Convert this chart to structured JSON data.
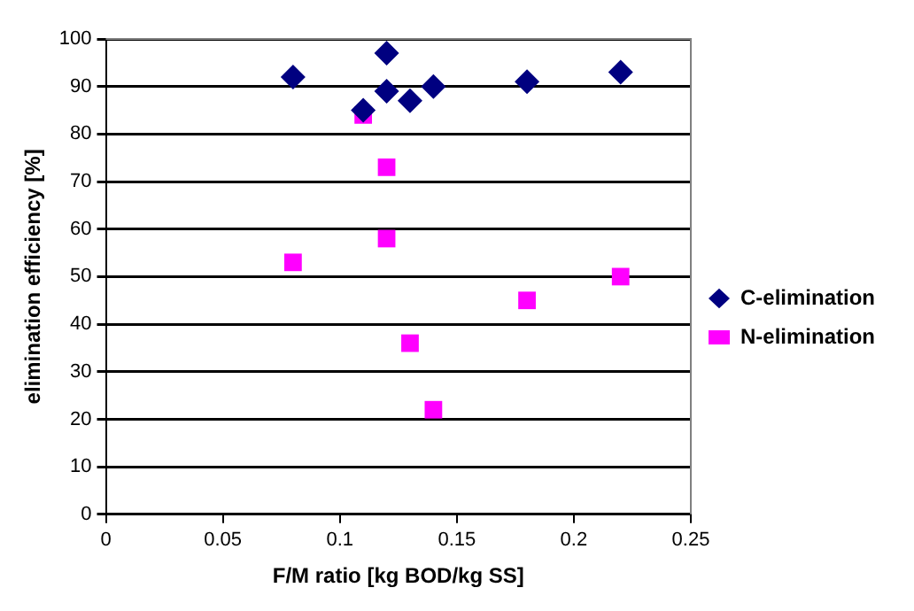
{
  "chart_data": {
    "type": "scatter",
    "xlabel": "F/M ratio [kg BOD/kg SS]",
    "ylabel": "elimination efficiency [%]",
    "xlim": [
      0,
      0.25
    ],
    "xticks": [
      0,
      0.05,
      0.1,
      0.15,
      0.2,
      0.25
    ],
    "ylim": [
      0,
      100
    ],
    "yticks": [
      0,
      10,
      20,
      30,
      40,
      50,
      60,
      70,
      80,
      90,
      100
    ],
    "grid": "y",
    "legend": "right",
    "series": [
      {
        "name": "N-elimination",
        "color": "#ff00ff",
        "marker": "square",
        "x": [
          0.08,
          0.11,
          0.12,
          0.12,
          0.13,
          0.14,
          0.18,
          0.22
        ],
        "values": [
          53,
          84,
          73,
          58,
          36,
          22,
          45,
          50
        ]
      },
      {
        "name": "C-elimination",
        "color": "#000080",
        "marker": "diamond",
        "x": [
          0.08,
          0.11,
          0.12,
          0.12,
          0.13,
          0.14,
          0.18,
          0.22
        ],
        "values": [
          92,
          85,
          97,
          89,
          87,
          90,
          91,
          93
        ]
      }
    ]
  }
}
